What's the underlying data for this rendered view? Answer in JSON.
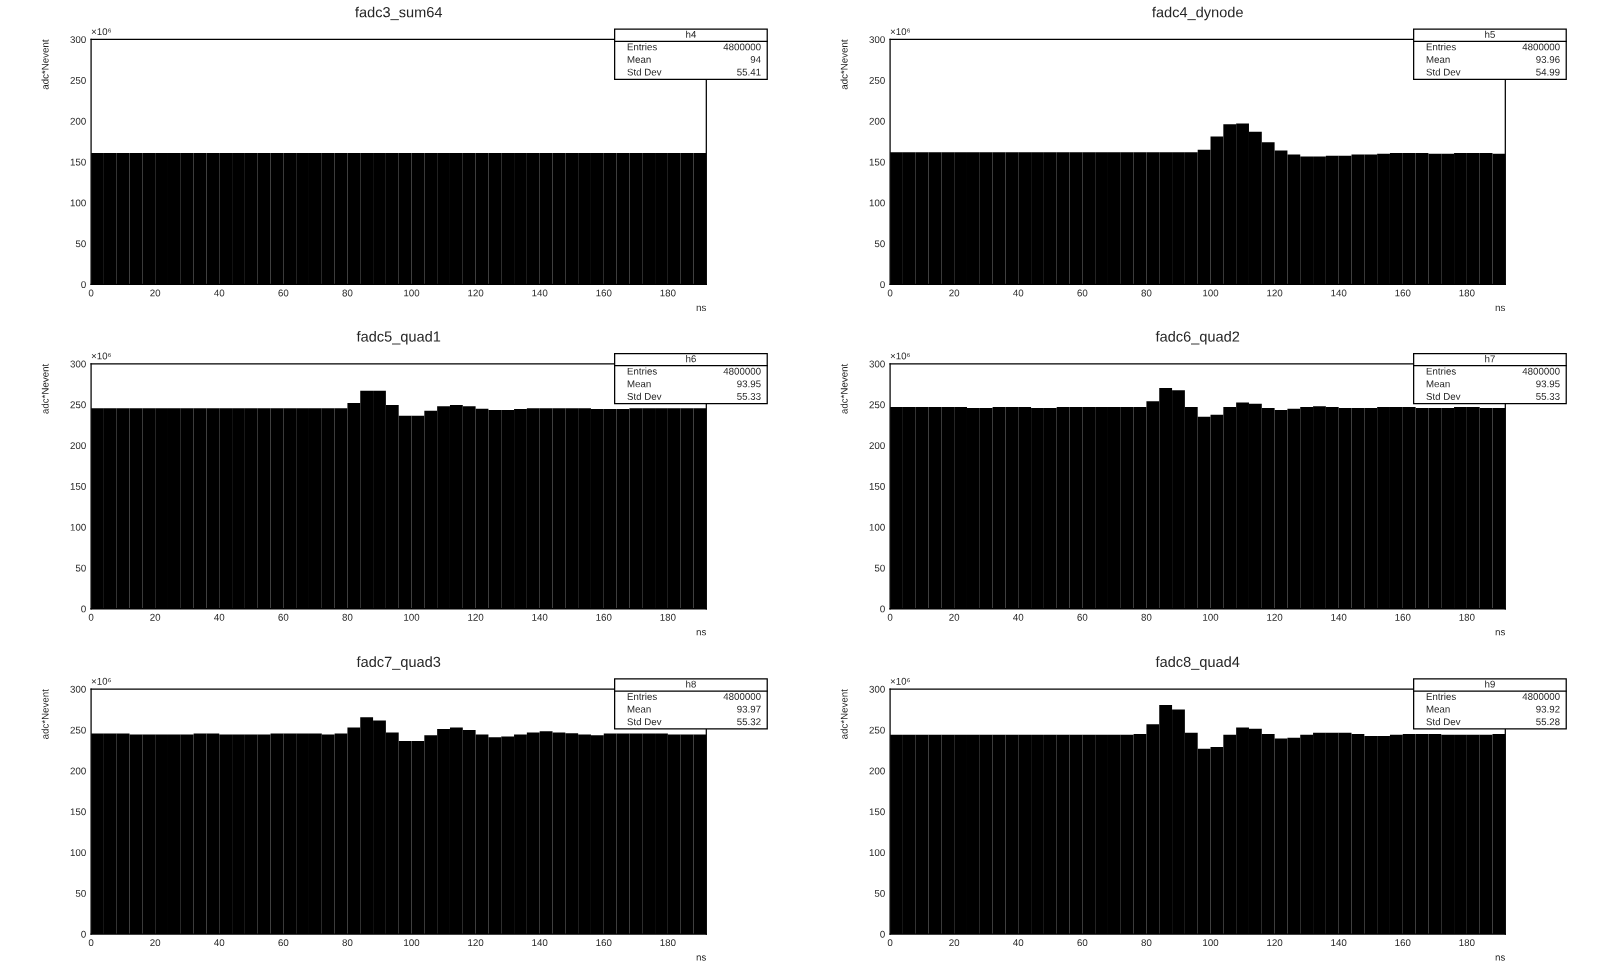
{
  "chart_data": [
    {
      "type": "histogram",
      "title": "fadc3_sum64",
      "xlabel": "ns",
      "ylabel": "adc*Nevent",
      "color": "#000000",
      "xlim": [
        0,
        192
      ],
      "ylim": [
        0,
        300
      ],
      "xticks": [
        0,
        20,
        40,
        60,
        80,
        100,
        120,
        140,
        160,
        180
      ],
      "yticks": [
        0,
        50,
        100,
        150,
        200,
        250,
        300
      ],
      "annotations": [
        "×10⁶",
        "h4",
        "Entries",
        "4800000",
        "Mean",
        "94",
        "Std Dev",
        "55.41"
      ],
      "bins": [
        0,
        4,
        8,
        12,
        16,
        20,
        24,
        28,
        32,
        36,
        40,
        44,
        48,
        52,
        56,
        60,
        64,
        68,
        72,
        76,
        80,
        84,
        88,
        92,
        96,
        100,
        104,
        108,
        112,
        116,
        120,
        124,
        128,
        132,
        136,
        140,
        144,
        148,
        152,
        156,
        160,
        164,
        168,
        172,
        176,
        180,
        184,
        188,
        192
      ],
      "values": [
        161,
        161,
        161,
        161,
        161,
        161,
        161,
        161,
        161,
        161,
        161,
        161,
        161,
        161,
        161,
        161,
        161,
        161,
        161,
        161,
        161,
        161,
        161,
        161,
        161,
        161,
        161,
        161,
        161,
        161,
        161,
        161,
        161,
        161,
        161,
        161,
        161,
        161,
        161,
        161,
        161,
        161,
        161,
        161,
        161,
        161,
        161,
        161
      ]
    },
    {
      "type": "histogram",
      "title": "fadc4_dynode",
      "xlabel": "ns",
      "ylabel": "adc*Nevent",
      "color": "#000000",
      "xlim": [
        0,
        192
      ],
      "ylim": [
        0,
        300
      ],
      "xticks": [
        0,
        20,
        40,
        60,
        80,
        100,
        120,
        140,
        160,
        180
      ],
      "yticks": [
        0,
        50,
        100,
        150,
        200,
        250,
        300
      ],
      "annotations": [
        "×10⁶",
        "h5",
        "Entries",
        "4800000",
        "Mean",
        "93.96",
        "Std Dev",
        "54.99"
      ],
      "bins": [
        0,
        4,
        8,
        12,
        16,
        20,
        24,
        28,
        32,
        36,
        40,
        44,
        48,
        52,
        56,
        60,
        64,
        68,
        72,
        76,
        80,
        84,
        88,
        92,
        96,
        100,
        104,
        108,
        112,
        116,
        120,
        124,
        128,
        132,
        136,
        140,
        144,
        148,
        152,
        156,
        160,
        164,
        168,
        172,
        176,
        180,
        184,
        188,
        192
      ],
      "values": [
        162,
        162,
        162,
        162,
        162,
        162,
        162,
        162,
        162,
        162,
        162,
        162,
        162,
        162,
        162,
        162,
        162,
        162,
        162,
        162,
        162,
        162,
        162,
        162,
        165,
        181,
        196,
        197,
        187,
        174,
        164,
        159,
        156.5,
        156.5,
        157.5,
        157.5,
        159,
        159,
        160,
        161,
        161,
        161,
        160,
        160,
        161,
        161,
        161,
        160
      ]
    },
    {
      "type": "histogram",
      "title": "fadc5_quad1",
      "xlabel": "ns",
      "ylabel": "adc*Nevent",
      "color": "#000000",
      "xlim": [
        0,
        192
      ],
      "ylim": [
        0,
        300
      ],
      "xticks": [
        0,
        20,
        40,
        60,
        80,
        100,
        120,
        140,
        160,
        180
      ],
      "yticks": [
        0,
        50,
        100,
        150,
        200,
        250,
        300
      ],
      "annotations": [
        "×10⁶",
        "h6",
        "Entries",
        "4800000",
        "Mean",
        "93.95",
        "Std Dev",
        "55.33"
      ],
      "bins": [
        0,
        4,
        8,
        12,
        16,
        20,
        24,
        28,
        32,
        36,
        40,
        44,
        48,
        52,
        56,
        60,
        64,
        68,
        72,
        76,
        80,
        84,
        88,
        92,
        96,
        100,
        104,
        108,
        112,
        116,
        120,
        124,
        128,
        132,
        136,
        140,
        144,
        148,
        152,
        156,
        160,
        164,
        168,
        172,
        176,
        180,
        184,
        188,
        192
      ],
      "values": [
        245.5,
        245.5,
        245.5,
        245.5,
        245.5,
        245.5,
        245.5,
        245.5,
        245.5,
        245.5,
        245.5,
        245.5,
        245.5,
        245.5,
        245.5,
        245.5,
        245.5,
        245.5,
        245.5,
        245.5,
        252,
        267,
        267,
        249.5,
        236.5,
        236.5,
        242.5,
        248,
        249.5,
        248,
        245,
        243.5,
        243.5,
        244.5,
        245.5,
        245.5,
        245.5,
        245.5,
        245.5,
        244.5,
        244.5,
        244.5,
        245.5,
        245.5,
        245.5,
        245.5,
        245.5,
        245.5
      ]
    },
    {
      "type": "histogram",
      "title": "fadc6_quad2",
      "xlabel": "ns",
      "ylabel": "adc*Nevent",
      "color": "#000000",
      "xlim": [
        0,
        192
      ],
      "ylim": [
        0,
        300
      ],
      "xticks": [
        0,
        20,
        40,
        60,
        80,
        100,
        120,
        140,
        160,
        180
      ],
      "yticks": [
        0,
        50,
        100,
        150,
        200,
        250,
        300
      ],
      "annotations": [
        "×10⁶",
        "h7",
        "Entries",
        "4800000",
        "Mean",
        "93.95",
        "Std Dev",
        "55.33"
      ],
      "bins": [
        0,
        4,
        8,
        12,
        16,
        20,
        24,
        28,
        32,
        36,
        40,
        44,
        48,
        52,
        56,
        60,
        64,
        68,
        72,
        76,
        80,
        84,
        88,
        92,
        96,
        100,
        104,
        108,
        112,
        116,
        120,
        124,
        128,
        132,
        136,
        140,
        144,
        148,
        152,
        156,
        160,
        164,
        168,
        172,
        176,
        180,
        184,
        188,
        192
      ],
      "values": [
        247,
        247,
        247,
        247,
        247,
        247,
        246,
        246,
        247,
        247,
        247,
        246,
        246,
        247,
        247,
        247,
        247,
        247,
        247,
        247,
        254,
        270.5,
        267.5,
        247,
        235,
        237.5,
        247,
        252.5,
        251,
        246,
        243.5,
        245,
        247,
        248,
        247,
        246,
        246,
        246,
        247,
        247,
        247,
        246,
        246,
        246,
        247,
        247,
        246,
        246
      ]
    },
    {
      "type": "histogram",
      "title": "fadc7_quad3",
      "xlabel": "ns",
      "ylabel": "adc*Nevent",
      "color": "#000000",
      "xlim": [
        0,
        192
      ],
      "ylim": [
        0,
        300
      ],
      "xticks": [
        0,
        20,
        40,
        60,
        80,
        100,
        120,
        140,
        160,
        180
      ],
      "yticks": [
        0,
        50,
        100,
        150,
        200,
        250,
        300
      ],
      "annotations": [
        "×10⁶",
        "h8",
        "Entries",
        "4800000",
        "Mean",
        "93.97",
        "Std Dev",
        "55.32"
      ],
      "bins": [
        0,
        4,
        8,
        12,
        16,
        20,
        24,
        28,
        32,
        36,
        40,
        44,
        48,
        52,
        56,
        60,
        64,
        68,
        72,
        76,
        80,
        84,
        88,
        92,
        96,
        100,
        104,
        108,
        112,
        116,
        120,
        124,
        128,
        132,
        136,
        140,
        144,
        148,
        152,
        156,
        160,
        164,
        168,
        172,
        176,
        180,
        184,
        188,
        192
      ],
      "values": [
        245.5,
        245.5,
        245.5,
        244.5,
        244.5,
        244.5,
        244.5,
        244.5,
        245.5,
        245.5,
        244.5,
        244.5,
        244.5,
        244.5,
        245.5,
        245.5,
        245.5,
        245.5,
        244.5,
        245.5,
        253,
        265.5,
        261.5,
        247,
        236.5,
        236.5,
        243.5,
        251,
        253,
        250,
        244.5,
        241,
        242,
        244.5,
        247,
        248.5,
        247,
        246,
        244.5,
        243.5,
        245.5,
        245.5,
        245.5,
        245.5,
        245.5,
        244.5,
        244.5,
        244.5
      ]
    },
    {
      "type": "histogram",
      "title": "fadc8_quad4",
      "xlabel": "ns",
      "ylabel": "adc*Nevent",
      "color": "#000000",
      "xlim": [
        0,
        192
      ],
      "ylim": [
        0,
        300
      ],
      "xticks": [
        0,
        20,
        40,
        60,
        80,
        100,
        120,
        140,
        160,
        180
      ],
      "yticks": [
        0,
        50,
        100,
        150,
        200,
        250,
        300
      ],
      "annotations": [
        "×10⁶",
        "h9",
        "Entries",
        "4800000",
        "Mean",
        "93.92",
        "Std Dev",
        "55.28"
      ],
      "bins": [
        0,
        4,
        8,
        12,
        16,
        20,
        24,
        28,
        32,
        36,
        40,
        44,
        48,
        52,
        56,
        60,
        64,
        68,
        72,
        76,
        80,
        84,
        88,
        92,
        96,
        100,
        104,
        108,
        112,
        116,
        120,
        124,
        128,
        132,
        136,
        140,
        144,
        148,
        152,
        156,
        160,
        164,
        168,
        172,
        176,
        180,
        184,
        188,
        192
      ],
      "values": [
        244,
        244,
        244,
        244,
        244,
        244,
        244,
        244,
        244,
        244,
        244,
        244,
        244,
        244,
        244,
        244,
        244,
        244,
        244,
        245,
        257,
        280.5,
        275,
        246.5,
        227,
        229,
        244,
        253,
        251.5,
        245,
        239.5,
        240.5,
        244,
        246.5,
        246.5,
        246.5,
        245,
        242.5,
        242.5,
        244,
        245,
        245,
        245,
        244,
        244,
        244,
        244,
        245
      ]
    }
  ]
}
